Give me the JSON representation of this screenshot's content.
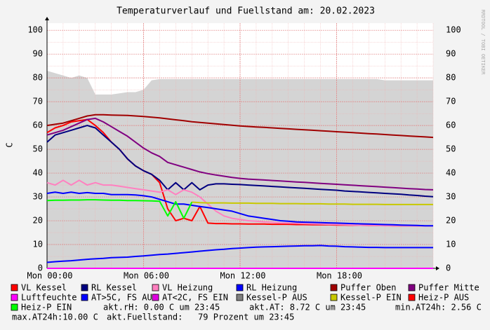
{
  "chart_data": {
    "type": "line",
    "title": "Temperaturverlauf und Fuellstand am: 20.02.2023",
    "y_label": "C",
    "watermark": "RRDTOOL / TOBI OETIKER",
    "xlim": [
      0,
      24
    ],
    "xticks": [
      {
        "value": 0,
        "label": "Mon 00:00"
      },
      {
        "value": 6,
        "label": "Mon 06:00"
      },
      {
        "value": 12,
        "label": "Mon 12:00"
      },
      {
        "value": 18,
        "label": "Mon 18:00"
      }
    ],
    "ylim": [
      0,
      103
    ],
    "yticks": [
      0,
      10,
      20,
      30,
      40,
      50,
      60,
      70,
      80,
      90,
      100
    ],
    "grid": true,
    "x": [
      0,
      0.5,
      1,
      1.5,
      2,
      2.5,
      3,
      3.5,
      4,
      4.5,
      5,
      5.5,
      6,
      6.5,
      7,
      7.5,
      8,
      8.5,
      9,
      9.5,
      10,
      10.5,
      11,
      11.5,
      12,
      12.5,
      13,
      13.5,
      14,
      14.5,
      15,
      15.5,
      16,
      16.5,
      17,
      17.5,
      18,
      18.5,
      19,
      19.5,
      20,
      20.5,
      21,
      21.5,
      22,
      22.5,
      23,
      23.5,
      24
    ],
    "area": {
      "color": "#d4d4d4",
      "values": [
        83,
        82,
        81,
        80,
        81,
        80,
        73,
        73,
        73,
        73.5,
        74,
        74,
        75,
        79,
        79.5,
        79.5,
        79.5,
        79.5,
        79.5,
        79.5,
        79.5,
        79.5,
        79.5,
        79.5,
        79.5,
        79.5,
        79.5,
        79.5,
        79.5,
        79.5,
        79.5,
        79.5,
        79.5,
        79.5,
        79.5,
        79.5,
        79.5,
        79.5,
        79.5,
        79.5,
        79.5,
        79.5,
        79,
        79,
        79,
        79,
        79,
        79,
        79
      ]
    },
    "series": [
      {
        "name": "VL Kessel",
        "color": "#ff0000",
        "values": [
          57,
          59,
          60,
          61.5,
          62,
          62.5,
          60,
          57,
          53,
          50,
          46,
          43,
          41,
          39.5,
          36,
          25,
          20,
          21,
          20,
          26,
          19,
          18.8,
          18.8,
          18.7,
          18.7,
          18.6,
          18.6,
          18.6,
          18.5,
          18.5,
          18.5,
          18.4,
          18.4,
          18.3,
          18.3,
          18.3,
          18.2,
          18.2,
          18.1,
          18.1,
          18,
          18,
          18,
          17.9,
          17.9,
          17.9,
          17.8,
          17.8,
          17.8
        ]
      },
      {
        "name": "RL Kessel",
        "color": "#000080",
        "values": [
          53,
          56,
          57,
          58,
          59,
          60,
          59,
          56,
          53,
          50,
          46,
          43,
          41,
          39.5,
          37,
          33,
          36,
          33,
          36,
          33,
          35,
          35.5,
          35.5,
          35.3,
          35.2,
          35,
          34.8,
          34.6,
          34.4,
          34.2,
          34,
          33.8,
          33.6,
          33.4,
          33.2,
          33,
          32.8,
          32.5,
          32.3,
          32.1,
          31.9,
          31.7,
          31.5,
          31.3,
          31.1,
          30.8,
          30.6,
          30.3,
          30.1
        ]
      },
      {
        "name": "VL Heizung",
        "color": "#ff80c0",
        "values": [
          36,
          35,
          37,
          35,
          37,
          35,
          36,
          35,
          35,
          34.5,
          34,
          33.5,
          33,
          32.5,
          32,
          33,
          31,
          33,
          32,
          30,
          27,
          24,
          22,
          21,
          20.5,
          20,
          19.8,
          19.5,
          19.3,
          19.1,
          19,
          18.9,
          18.8,
          18.7,
          18.6,
          18.5,
          18.4,
          18.3,
          18.2,
          18.1,
          18,
          18,
          17.9,
          17.9,
          17.9,
          17.8,
          17.8,
          17.8,
          17.8
        ]
      },
      {
        "name": "RL Heizung",
        "color": "#0000ff",
        "values": [
          31.5,
          32,
          31.5,
          32,
          31.5,
          31.8,
          31.5,
          31.5,
          31,
          31,
          31,
          30.8,
          30.5,
          30,
          29,
          28,
          27,
          27,
          26.5,
          26,
          25.5,
          25,
          24.5,
          24,
          23,
          22,
          21.5,
          21,
          20.5,
          20,
          19.8,
          19.5,
          19.4,
          19.3,
          19.2,
          19.1,
          19,
          18.9,
          18.8,
          18.7,
          18.6,
          18.5,
          18.4,
          18.3,
          18.2,
          18.1,
          18,
          17.9,
          17.9
        ]
      },
      {
        "name": "Puffer Oben",
        "color": "#a00000",
        "values": [
          60,
          60.5,
          61,
          62,
          63,
          64,
          64.5,
          64.5,
          64.4,
          64.3,
          64.2,
          64,
          63.8,
          63.5,
          63.2,
          62.8,
          62.4,
          62,
          61.6,
          61.3,
          61,
          60.7,
          60.4,
          60.1,
          59.8,
          59.6,
          59.4,
          59.2,
          59,
          58.8,
          58.6,
          58.4,
          58.2,
          58,
          57.8,
          57.6,
          57.4,
          57.2,
          57,
          56.8,
          56.6,
          56.4,
          56.2,
          56,
          55.8,
          55.6,
          55.4,
          55.2,
          55
        ]
      },
      {
        "name": "Puffer Mitte",
        "color": "#800080",
        "values": [
          56,
          57,
          58,
          59.5,
          61,
          62.5,
          63,
          61.5,
          59.5,
          57.5,
          55.5,
          53,
          50.5,
          48.5,
          47,
          44.5,
          43.5,
          42.5,
          41.5,
          40.5,
          39.8,
          39.2,
          38.7,
          38.2,
          37.8,
          37.5,
          37.3,
          37.1,
          36.9,
          36.7,
          36.5,
          36.3,
          36.1,
          35.9,
          35.7,
          35.5,
          35.3,
          35.1,
          34.9,
          34.7,
          34.5,
          34.3,
          34.1,
          33.9,
          33.7,
          33.5,
          33.3,
          33.1,
          33
        ]
      },
      {
        "name": "Luftfeuchte",
        "color": "#ff00ff",
        "values": [
          0,
          0,
          0,
          0,
          0,
          0,
          0,
          0,
          0,
          0,
          0,
          0,
          0,
          0,
          0,
          0,
          0,
          0,
          0,
          0,
          0,
          0,
          0,
          0,
          0,
          0,
          0,
          0,
          0,
          0,
          0,
          0,
          0,
          0,
          0,
          0,
          0,
          0,
          0,
          0,
          0,
          0,
          0,
          0,
          0,
          0,
          0,
          0,
          0
        ]
      },
      {
        "name": "AT>5C, FS AUS",
        "color": "#0000ff",
        "values": [
          2.5,
          2.8,
          3,
          3.2,
          3.5,
          3.8,
          4,
          4.2,
          4.5,
          4.6,
          4.7,
          5,
          5.2,
          5.5,
          5.8,
          6,
          6.3,
          6.6,
          6.9,
          7.2,
          7.5,
          7.8,
          8,
          8.3,
          8.5,
          8.7,
          8.9,
          9,
          9.1,
          9.2,
          9.3,
          9.4,
          9.5,
          9.5,
          9.6,
          9.4,
          9.3,
          9.1,
          9,
          8.9,
          8.8,
          8.8,
          8.7,
          8.7,
          8.7,
          8.7,
          8.7,
          8.7,
          8.72
        ]
      },
      {
        "name": "AT<2C, FS EIN",
        "color": "#e000e0"
      },
      {
        "name": "Kessel-P AUS",
        "color": "#808080"
      },
      {
        "name": "Kessel-P EIN",
        "color": "#c8c800",
        "values": [
          null,
          null,
          null,
          null,
          null,
          null,
          null,
          null,
          null,
          null,
          null,
          null,
          null,
          null,
          null,
          null,
          null,
          null,
          27.8,
          27.6,
          27.5,
          27.5,
          27.5,
          27.4,
          27.4,
          27.4,
          27.3,
          27.3,
          27.3,
          27.2,
          27.2,
          27.2,
          27.1,
          27.1,
          27.1,
          27,
          27,
          27,
          26.9,
          26.9,
          26.9,
          26.9,
          26.8,
          26.8,
          26.8,
          26.8,
          26.8,
          26.8,
          26.8
        ]
      },
      {
        "name": "Heiz-P AUS",
        "color": "#ff0000"
      },
      {
        "name": "Heiz-P EIN",
        "color": "#00ff00",
        "values": [
          28.5,
          28.6,
          28.6,
          28.7,
          28.7,
          28.8,
          28.8,
          28.7,
          28.6,
          28.6,
          28.5,
          28.5,
          28.4,
          28.3,
          28.2,
          22,
          28,
          21,
          27.8,
          null,
          null,
          null,
          null,
          null,
          null,
          null,
          null,
          null,
          null,
          null,
          null,
          null,
          null,
          null,
          null,
          null,
          null,
          null,
          null,
          null,
          null,
          null,
          null,
          null,
          null,
          null,
          null,
          null,
          null
        ]
      }
    ],
    "notes": [
      "akt.rH: 0.00 C um 23:45",
      "akt.AT: 8.72 C um 23:45",
      "min.AT24h: 2.56 C",
      "max.AT24h:10.00 C",
      "akt.Fuellstand:   79 Prozent um 23:45"
    ]
  }
}
